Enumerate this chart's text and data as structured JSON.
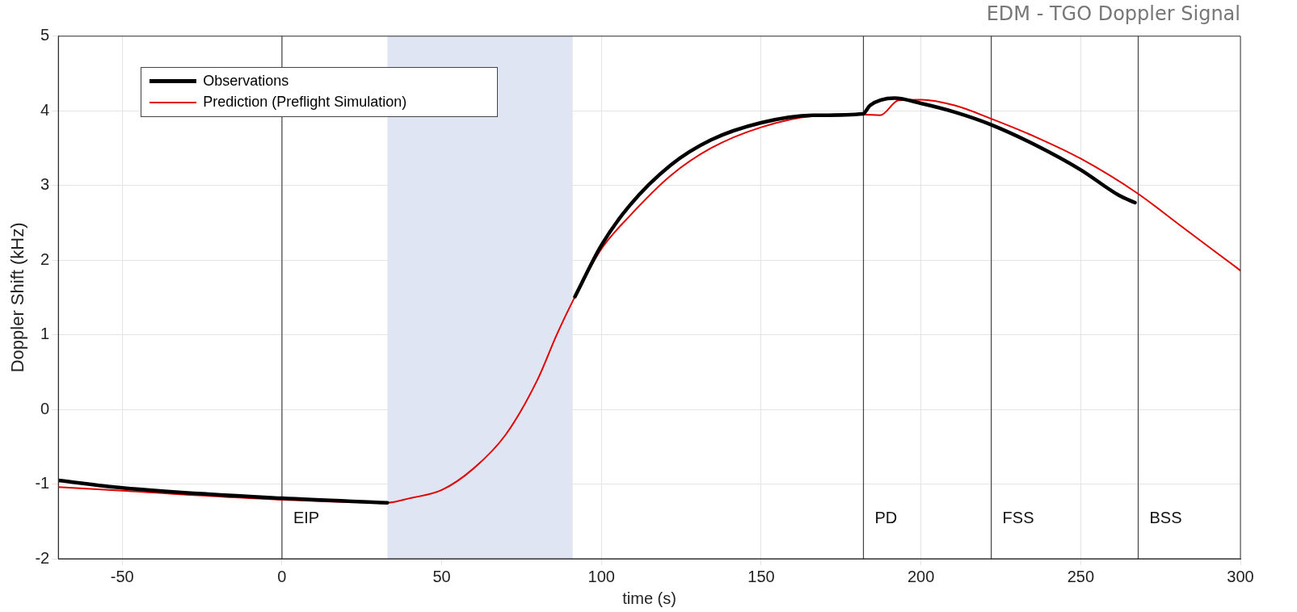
{
  "chart_data": {
    "type": "line",
    "title": "EDM - TGO Doppler Signal",
    "xlabel": "time (s)",
    "ylabel": "Doppler Shift (kHz)",
    "xlim": [
      -70,
      300
    ],
    "xticks": [
      -50,
      0,
      50,
      100,
      150,
      200,
      250,
      300
    ],
    "ylim": [
      -2,
      5
    ],
    "yticks": [
      -2,
      -1,
      0,
      1,
      2,
      3,
      4,
      5
    ],
    "grid": true,
    "legend": "top left",
    "marker": "none",
    "line_style": "solid",
    "series": [
      {
        "name": "Observations",
        "color": "#000000",
        "x": [
          -70,
          -50,
          0,
          33,
          null,
          91.7,
          100,
          108.8,
          121.6,
          134.3,
          150,
          166.2,
          181.9,
          184,
          191.7,
          200,
          210.8,
          222.2,
          236.4,
          250,
          261.9,
          267
        ],
        "values": [
          -0.95,
          -1.05,
          -1.19,
          -1.25,
          null,
          1.51,
          2.2,
          2.73,
          3.27,
          3.61,
          3.84,
          3.94,
          3.96,
          4.07,
          4.17,
          4.1,
          3.98,
          3.81,
          3.53,
          3.21,
          2.87,
          2.77
        ]
      },
      {
        "name": "Prediction (Preflight Simulation)",
        "color": "#e00000",
        "x": [
          -70,
          -50,
          0,
          33,
          40,
          50,
          60,
          70,
          80,
          86,
          91.6,
          100,
          108.8,
          121.6,
          134.3,
          150,
          166.2,
          181.9,
          187.2,
          193,
          200,
          210.8,
          222.2,
          236.4,
          250,
          267.6,
          281,
          300
        ],
        "values": [
          -1.04,
          -1.09,
          -1.21,
          -1.25,
          -1.19,
          -1.08,
          -0.79,
          -0.34,
          0.4,
          1.0,
          1.5,
          2.15,
          2.59,
          3.13,
          3.5,
          3.78,
          3.93,
          3.95,
          3.94,
          4.14,
          4.15,
          4.07,
          3.89,
          3.64,
          3.36,
          2.9,
          2.47,
          1.86
        ]
      }
    ],
    "bands": [
      {
        "axis": "x",
        "from": 33,
        "to": 91,
        "color": "#e0e5f3"
      }
    ],
    "ref_lines": [
      {
        "axis": "x",
        "value": 0,
        "label": "EIP",
        "color": "#444444"
      },
      {
        "axis": "x",
        "value": 182,
        "label": "PD",
        "color": "#444444"
      },
      {
        "axis": "x",
        "value": 222,
        "label": "FSS",
        "color": "#444444"
      },
      {
        "axis": "x",
        "value": 268,
        "label": "BSS",
        "color": "#444444"
      }
    ]
  }
}
